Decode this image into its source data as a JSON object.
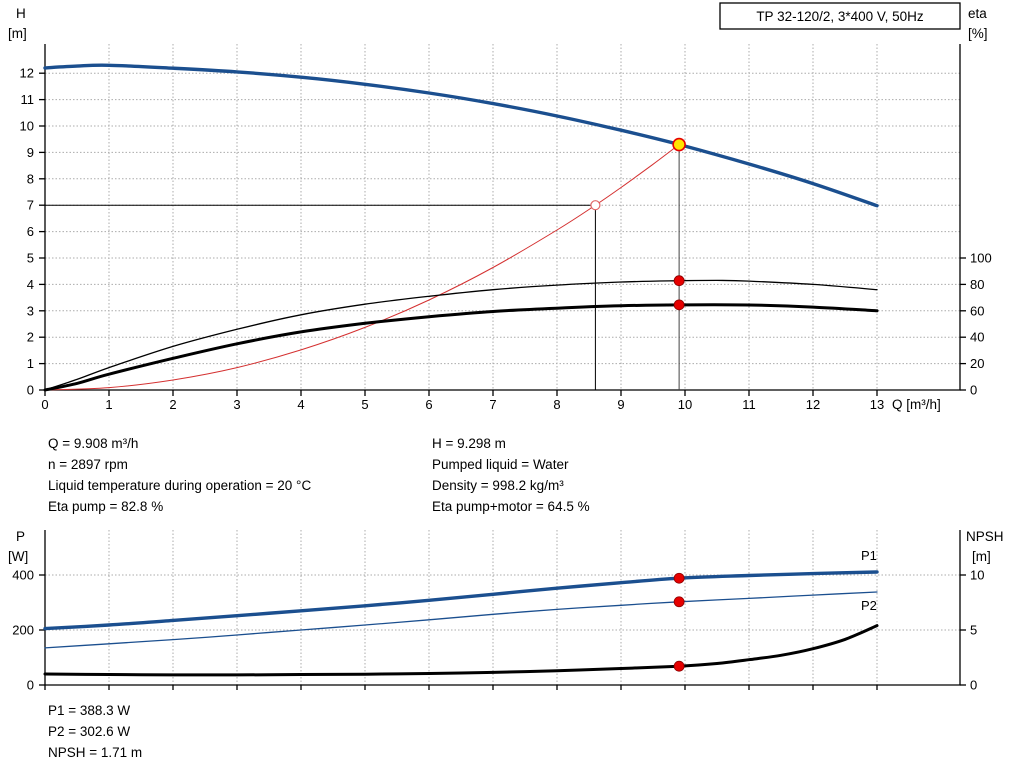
{
  "title": "TP 32-120/2, 3*400 V, 50Hz",
  "info_block": {
    "left": [
      "Q = 9.908 m³/h",
      "n = 2897 rpm",
      "Liquid temperature during operation = 20 °C",
      "Eta pump = 82.8 %"
    ],
    "right": [
      "H = 9.298 m",
      "Pumped liquid = Water",
      "Density = 998.2 kg/m³",
      "Eta pump+motor = 64.5 %"
    ]
  },
  "power_block": [
    "P1 = 388.3 W",
    "P2 = 302.6 W",
    "NPSH = 1.71 m"
  ],
  "colors": {
    "curve_blue": "#1b4f8f",
    "system_red": "#d43030",
    "marker_red": "#e60000",
    "duty_yellow": "#ffe400"
  },
  "chart_data": [
    {
      "type": "line",
      "title": "TP 32-120/2, 3*400 V, 50Hz",
      "x_axis": {
        "label": "Q [m³/h]",
        "min": 0,
        "max": 13,
        "ticks": [
          0,
          1,
          2,
          3,
          4,
          5,
          6,
          7,
          8,
          9,
          10,
          11,
          12,
          13
        ]
      },
      "y_left": {
        "name": "H",
        "unit": "[m]",
        "min": 0,
        "max": 12,
        "ticks": [
          0,
          1,
          2,
          3,
          4,
          5,
          6,
          7,
          8,
          9,
          10,
          11,
          12
        ]
      },
      "y_right": {
        "name": "eta",
        "unit": "[%]",
        "ticks": [
          0,
          20,
          40,
          60,
          80,
          100
        ]
      },
      "series": [
        {
          "name": "pump-head-curve",
          "axis": "left",
          "color": "#1b4f8f",
          "width": 3.4,
          "points": [
            [
              0,
              12.2
            ],
            [
              0.5,
              12.27
            ],
            [
              1,
              12.3
            ],
            [
              2,
              12.19
            ],
            [
              3,
              12.05
            ],
            [
              4,
              11.85
            ],
            [
              5,
              11.58
            ],
            [
              6,
              11.25
            ],
            [
              7,
              10.85
            ],
            [
              8,
              10.38
            ],
            [
              9,
              9.84
            ],
            [
              9.908,
              9.298
            ],
            [
              11,
              8.56
            ],
            [
              12,
              7.82
            ],
            [
              13,
              6.98
            ]
          ]
        },
        {
          "name": "system-curve",
          "axis": "left",
          "color": "#d43030",
          "width": 1,
          "points": [
            [
              0,
              0
            ],
            [
              1,
              0.09
            ],
            [
              2,
              0.38
            ],
            [
              3,
              0.85
            ],
            [
              4,
              1.52
            ],
            [
              5,
              2.37
            ],
            [
              6,
              3.41
            ],
            [
              7,
              4.64
            ],
            [
              8,
              6.06
            ],
            [
              8.6,
              7.0
            ],
            [
              9,
              7.67
            ],
            [
              9.5,
              8.55
            ],
            [
              9.908,
              9.298
            ]
          ]
        },
        {
          "name": "eta-pump-curve",
          "axis": "right",
          "color": "#000000",
          "width": 1.3,
          "points": [
            [
              0,
              0
            ],
            [
              0.5,
              8
            ],
            [
              1,
              17
            ],
            [
              2,
              33
            ],
            [
              3,
              46
            ],
            [
              4,
              57
            ],
            [
              5,
              65
            ],
            [
              6,
              71
            ],
            [
              7,
              76
            ],
            [
              8,
              79.5
            ],
            [
              9,
              81.8
            ],
            [
              9.908,
              82.8
            ],
            [
              10.5,
              83
            ],
            [
              11,
              82.5
            ],
            [
              12,
              80
            ],
            [
              13,
              76
            ]
          ]
        },
        {
          "name": "eta-pump-motor-curve",
          "axis": "right",
          "color": "#000000",
          "width": 3,
          "points": [
            [
              0,
              0
            ],
            [
              0.5,
              5
            ],
            [
              1,
              12
            ],
            [
              2,
              24
            ],
            [
              3,
              35
            ],
            [
              4,
              44
            ],
            [
              5,
              50.5
            ],
            [
              6,
              55.5
            ],
            [
              7,
              59.5
            ],
            [
              8,
              62
            ],
            [
              9,
              63.8
            ],
            [
              9.908,
              64.5
            ],
            [
              11,
              64.4
            ],
            [
              12,
              62.8
            ],
            [
              13,
              60
            ]
          ]
        }
      ],
      "duty_point": {
        "q": 9.908,
        "h": 9.298
      },
      "requested_point": {
        "q": 8.6,
        "h": 7.0
      },
      "markers": [
        {
          "q": 9.908,
          "value": 82.8,
          "axis": "right"
        },
        {
          "q": 9.908,
          "value": 64.5,
          "axis": "right"
        }
      ]
    },
    {
      "type": "line",
      "x_axis": {
        "min": 0,
        "max": 13,
        "ticks": [
          0,
          1,
          2,
          3,
          4,
          5,
          6,
          7,
          8,
          9,
          10,
          11,
          12,
          13
        ]
      },
      "y_left": {
        "name": "P",
        "unit": "[W]",
        "ticks": [
          0,
          200,
          400
        ]
      },
      "y_right": {
        "name": "NPSH",
        "unit": "[m]",
        "ticks": [
          0,
          5,
          10
        ]
      },
      "series": [
        {
          "name": "P1-power-curve",
          "axis": "left",
          "color": "#1b4f8f",
          "width": 3.4,
          "points": [
            [
              0,
              205
            ],
            [
              1,
              218
            ],
            [
              2,
              235
            ],
            [
              3,
              252
            ],
            [
              4,
              270
            ],
            [
              5,
              288
            ],
            [
              6,
              308
            ],
            [
              7,
              330
            ],
            [
              8,
              352
            ],
            [
              9,
              372
            ],
            [
              9.908,
              388.3
            ],
            [
              11,
              398
            ],
            [
              12,
              405
            ],
            [
              13,
              411
            ]
          ]
        },
        {
          "name": "P2-power-curve",
          "axis": "left",
          "color": "#1b4f8f",
          "width": 1.3,
          "points": [
            [
              0,
              135
            ],
            [
              1,
              150
            ],
            [
              2,
              165
            ],
            [
              3,
              182
            ],
            [
              4,
              200
            ],
            [
              5,
              218
            ],
            [
              6,
              237
            ],
            [
              7,
              257
            ],
            [
              8,
              275
            ],
            [
              9,
              290
            ],
            [
              9.908,
              302.6
            ],
            [
              11,
              315
            ],
            [
              12,
              327
            ],
            [
              13,
              338
            ]
          ]
        },
        {
          "name": "NPSH-curve",
          "axis": "right",
          "color": "#000000",
          "width": 3,
          "points": [
            [
              0,
              1.0
            ],
            [
              1,
              0.95
            ],
            [
              2,
              0.92
            ],
            [
              3,
              0.92
            ],
            [
              4,
              0.95
            ],
            [
              5,
              0.98
            ],
            [
              6,
              1.05
            ],
            [
              7,
              1.15
            ],
            [
              8,
              1.3
            ],
            [
              9,
              1.5
            ],
            [
              9.908,
              1.71
            ],
            [
              10.5,
              1.95
            ],
            [
              11,
              2.3
            ],
            [
              11.5,
              2.7
            ],
            [
              12,
              3.3
            ],
            [
              12.5,
              4.15
            ],
            [
              13,
              5.4
            ]
          ]
        }
      ],
      "annotations": [
        {
          "text": "P1",
          "q": 12.75,
          "value": 455
        },
        {
          "text": "P2",
          "q": 12.75,
          "value": 272
        }
      ],
      "markers": [
        {
          "q": 9.908,
          "value": 388.3,
          "axis": "left"
        },
        {
          "q": 9.908,
          "value": 302.6,
          "axis": "left"
        },
        {
          "q": 9.908,
          "value": 1.71,
          "axis": "right"
        }
      ]
    }
  ]
}
